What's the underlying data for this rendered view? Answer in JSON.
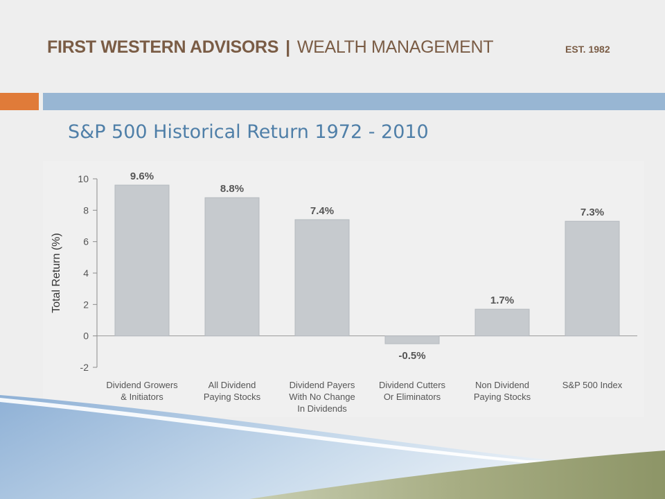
{
  "header": {
    "firm": "FIRST WESTERN ADVISORS",
    "separator": "|",
    "division": "WEALTH MANAGEMENT",
    "established": "EST. 1982"
  },
  "colors": {
    "brand_brown": "#7a5c45",
    "accent_orange": "#e07b39",
    "accent_blue": "#98b6d3",
    "title_blue": "#4f7fa8",
    "bar_fill": "#c6cace"
  },
  "slide": {
    "title": "S&P 500 Historical Return 1972 - 2010"
  },
  "chart_data": {
    "type": "bar",
    "title": "",
    "ylabel": "Total Return (%)",
    "xlabel": "",
    "ylim": [
      -2,
      10
    ],
    "yticks": [
      10,
      8,
      6,
      4,
      2,
      0,
      -2
    ],
    "categories": [
      [
        "Dividend Growers",
        "& Initiators"
      ],
      [
        "All Dividend",
        "Paying Stocks"
      ],
      [
        "Dividend Payers",
        "With No Change",
        "In Dividends"
      ],
      [
        "Dividend Cutters",
        "Or Eliminators"
      ],
      [
        "Non Dividend",
        "Paying Stocks"
      ],
      [
        "S&P 500 Index"
      ]
    ],
    "values": [
      9.6,
      8.8,
      7.4,
      -0.5,
      1.7,
      7.3
    ],
    "data_labels": [
      "9.6%",
      "8.8%",
      "7.4%",
      "-0.5%",
      "1.7%",
      "7.3%"
    ],
    "grid": false,
    "legend": "none"
  }
}
